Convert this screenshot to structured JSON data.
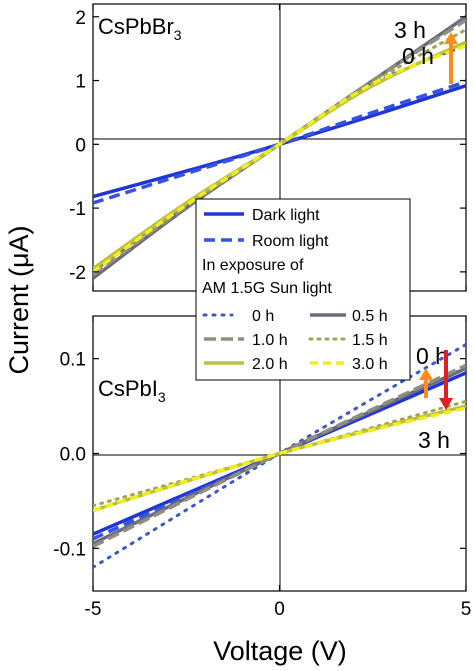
{
  "chart_data": {
    "type": "line",
    "ylabel": "Current (μA)",
    "xlabel": "Voltage (V)",
    "xlim": [
      -5,
      5
    ],
    "xticks": [
      "-5",
      "0",
      "5"
    ],
    "colors": {
      "dark": "#1f35d6",
      "room": "#3552e6",
      "h0": "#3b57c9",
      "h05": "#6b6b80",
      "h10": "#8f8f80",
      "h15": "#a3a34d",
      "h20": "#bfbf3a",
      "h30": "#f0ee1c",
      "arrow_up": "#ff8c1a",
      "arrow_down": "#e01f1f"
    },
    "legend": {
      "items": [
        "Dark light",
        "Room light"
      ],
      "note_line1": "In exposure of",
      "note_line2": "AM 1.5G Sun light",
      "time_items": [
        "0 h",
        "0.5 h",
        "1.0 h",
        "1.5 h",
        "2.0 h",
        "3.0 h"
      ]
    },
    "panels": [
      {
        "label_base": "CsPbBr",
        "label_sub": "3",
        "ylim": [
          -2.3,
          2.2
        ],
        "yticks": [
          "2",
          "1",
          "0",
          "-1",
          "-2"
        ],
        "annotation_top": "3 h",
        "annotation_bottom": "0 h",
        "series": [
          {
            "name": "Dark light",
            "x": [
              -5,
              -2.5,
              0,
              2.5,
              5
            ],
            "values": [
              -0.82,
              -0.42,
              0,
              0.45,
              0.92
            ]
          },
          {
            "name": "Room light",
            "x": [
              -5,
              -2.5,
              0,
              2.5,
              5
            ],
            "values": [
              -0.92,
              -0.46,
              0,
              0.5,
              0.98
            ]
          },
          {
            "name": "0 h",
            "x": [
              -5,
              -2.5,
              0,
              2.5,
              5
            ],
            "values": [
              -2.0,
              -0.95,
              0,
              0.95,
              1.55
            ]
          },
          {
            "name": "0.5 h",
            "x": [
              -5,
              -2.5,
              0,
              2.5,
              5
            ],
            "values": [
              -2.1,
              -1.0,
              0,
              1.0,
              2.0
            ]
          },
          {
            "name": "1.0 h",
            "x": [
              -5,
              -2.5,
              0,
              2.5,
              5
            ],
            "values": [
              -2.05,
              -0.98,
              0,
              1.0,
              1.95
            ]
          },
          {
            "name": "1.5 h",
            "x": [
              -5,
              -2.5,
              0,
              2.5,
              5
            ],
            "values": [
              -2.0,
              -0.95,
              0,
              0.97,
              1.8
            ]
          },
          {
            "name": "2.0 h",
            "x": [
              -5,
              -2.5,
              0,
              2.5,
              5
            ],
            "values": [
              -1.95,
              -0.92,
              0,
              0.92,
              1.6
            ]
          },
          {
            "name": "3.0 h",
            "x": [
              -5,
              -2.5,
              0,
              2.5,
              5
            ],
            "values": [
              -2.0,
              -0.95,
              0,
              0.95,
              1.55
            ]
          }
        ]
      },
      {
        "label_base": "CsPbI",
        "label_sub": "3",
        "ylim": [
          -0.145,
          0.145
        ],
        "yticks": [
          "0.1",
          "0.0",
          "-0.1"
        ],
        "annotation_top": "0 h",
        "annotation_bottom": "3 h",
        "series": [
          {
            "name": "Dark light",
            "x": [
              -5,
              0,
              5
            ],
            "values": [
              -0.085,
              0,
              0.085
            ]
          },
          {
            "name": "Room light",
            "x": [
              -5,
              0,
              5
            ],
            "values": [
              -0.09,
              0,
              0.09
            ]
          },
          {
            "name": "0 h",
            "x": [
              -5,
              0,
              5
            ],
            "values": [
              -0.12,
              0,
              0.115
            ]
          },
          {
            "name": "0.5 h",
            "x": [
              -5,
              0,
              5
            ],
            "values": [
              -0.095,
              0,
              0.09
            ]
          },
          {
            "name": "1.0 h",
            "x": [
              -5,
              0,
              5
            ],
            "values": [
              -0.098,
              0,
              0.093
            ]
          },
          {
            "name": "1.5 h",
            "x": [
              -5,
              0,
              5
            ],
            "values": [
              -0.055,
              0,
              0.055
            ]
          },
          {
            "name": "2.0 h",
            "x": [
              -5,
              0,
              5
            ],
            "values": [
              -0.06,
              0,
              0.05
            ]
          },
          {
            "name": "3.0 h",
            "x": [
              -5,
              0,
              5
            ],
            "values": [
              -0.06,
              0,
              0.048
            ]
          }
        ]
      }
    ]
  }
}
